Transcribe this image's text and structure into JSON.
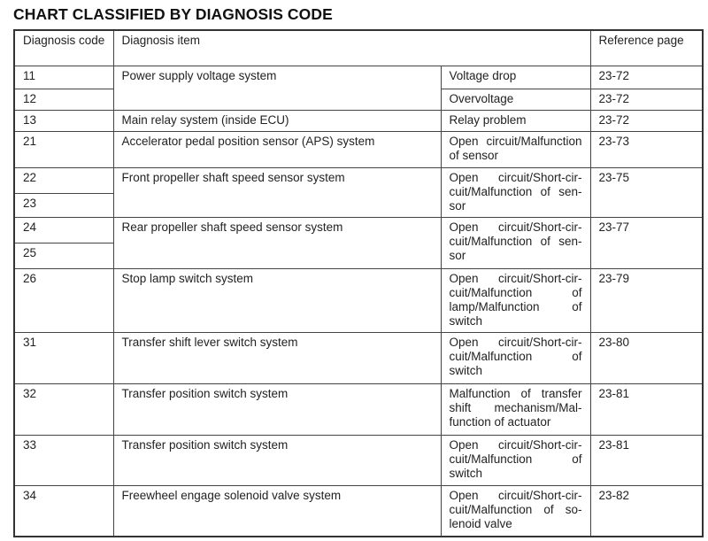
{
  "title": "CHART CLASSIFIED BY DIAGNOSIS CODE",
  "headers": {
    "code": "Diagnosis code",
    "item": "Diagnosis item",
    "ref": "Reference page"
  },
  "rows": [
    {
      "codes": [
        "11",
        "12"
      ],
      "item": "Power supply voltage system",
      "subs": [
        {
          "text": "Voltage drop",
          "ref": "23-72"
        },
        {
          "text": "Overvoltage",
          "ref": "23-72"
        }
      ]
    },
    {
      "codes": [
        "13"
      ],
      "item": "Main relay system (inside ECU)",
      "subs": [
        {
          "text": "Relay problem",
          "ref": "23-72"
        }
      ]
    },
    {
      "codes": [
        "21"
      ],
      "item": "Accelerator pedal position sensor (APS) system",
      "subs": [
        {
          "text": "Open circuit/Malfunc­tion of sensor",
          "ref": "23-73"
        }
      ]
    },
    {
      "codes": [
        "22",
        "23"
      ],
      "item": "Front propeller shaft speed sensor system",
      "subs": [
        {
          "text": "Open circuit/Short-cir­cuit/Malfunction of sen­sor",
          "ref": "23-75"
        }
      ]
    },
    {
      "codes": [
        "24",
        "25"
      ],
      "item": "Rear propeller shaft speed sensor system",
      "subs": [
        {
          "text": "Open circuit/Short-cir­cuit/Malfunction of sen­sor",
          "ref": "23-77"
        }
      ]
    },
    {
      "codes": [
        "26"
      ],
      "item": "Stop lamp switch system",
      "subs": [
        {
          "text": "Open circuit/Short-cir­cuit/Malfunction of lamp/Malfunction of switch",
          "ref": "23-79"
        }
      ]
    },
    {
      "codes": [
        "31"
      ],
      "item": "Transfer shift lever switch system",
      "subs": [
        {
          "text": "Open circuit/Short-cir­cuit/Malfunction of switch",
          "ref": "23-80"
        }
      ]
    },
    {
      "codes": [
        "32"
      ],
      "item": "Transfer position switch system",
      "subs": [
        {
          "text": "Malfunction of transfer shift mechanism/Mal­function of actuator",
          "ref": "23-81"
        }
      ]
    },
    {
      "codes": [
        "33"
      ],
      "item": "Transfer position switch system",
      "subs": [
        {
          "text": "Open circuit/Short-cir­cuit/Malfunction of switch",
          "ref": "23-81"
        }
      ]
    },
    {
      "codes": [
        "34"
      ],
      "item": "Freewheel engage solenoid valve system",
      "subs": [
        {
          "text": "Open circuit/Short-cir­cuit/Malfunction of so­lenoid valve",
          "ref": "23-82"
        }
      ]
    }
  ]
}
